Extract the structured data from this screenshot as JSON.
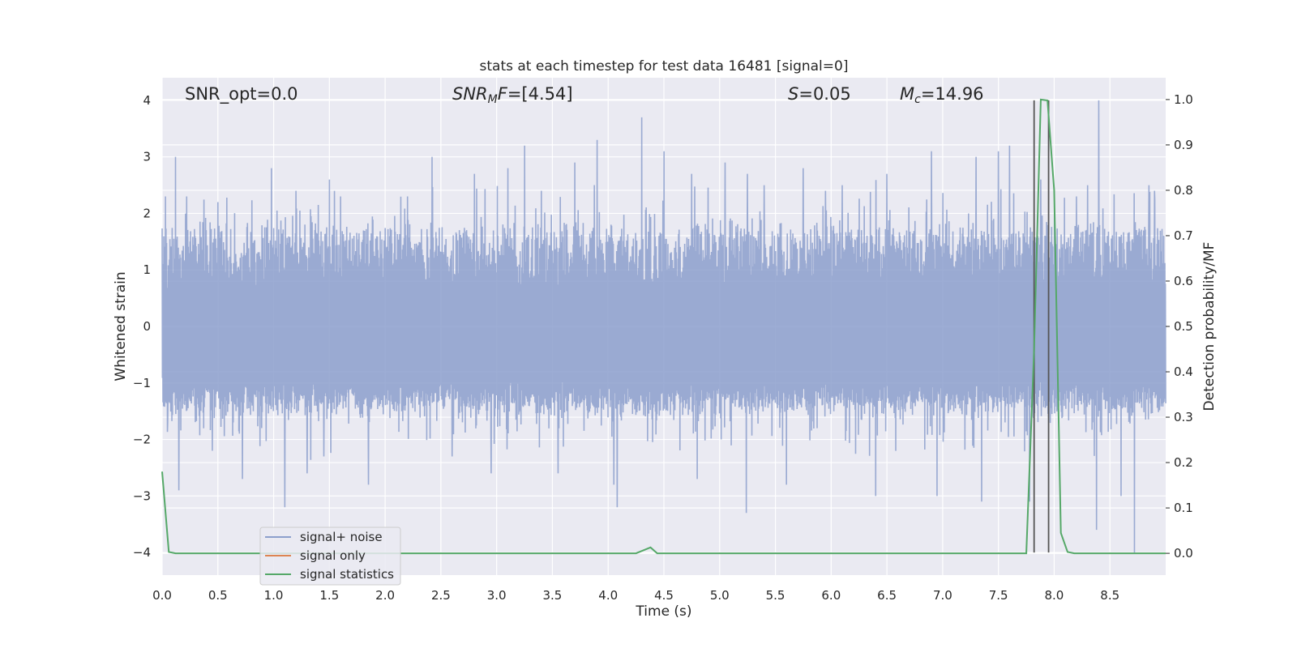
{
  "chart_data": {
    "type": "line",
    "title": "stats at each timestep for test data 16481 [signal=0]",
    "xlabel": "Time (s)",
    "ylabel": "Whitened strain",
    "y2label": "Detection probability/MF",
    "xlim": [
      0.0,
      9.0
    ],
    "ylim": [
      -4.4,
      4.4
    ],
    "y2lim": [
      -0.048,
      1.048
    ],
    "x_ticks": [
      "0.0",
      "0.5",
      "1.0",
      "1.5",
      "2.0",
      "2.5",
      "3.0",
      "3.5",
      "4.0",
      "4.5",
      "5.0",
      "5.5",
      "6.0",
      "6.5",
      "7.0",
      "7.5",
      "8.0",
      "8.5"
    ],
    "y_ticks": [
      "−4",
      "−3",
      "−2",
      "−1",
      "0",
      "1",
      "2",
      "3",
      "4"
    ],
    "y2_ticks": [
      "0.0",
      "0.1",
      "0.2",
      "0.3",
      "0.4",
      "0.5",
      "0.6",
      "0.7",
      "0.8",
      "0.9",
      "1.0"
    ],
    "grid": true,
    "legend_position": "lower-left",
    "annotations": [
      {
        "text": "SNR_opt=0.0",
        "parts": [
          {
            "t": "SNR_opt=0.0",
            "style": "normal"
          }
        ]
      },
      {
        "text": "SNR_MF=[4.54]",
        "parts": [
          {
            "t": "SNR",
            "style": "italic"
          },
          {
            "t": "M",
            "style": "italic-sub"
          },
          {
            "t": "F",
            "style": "italic"
          },
          {
            "t": "=[4.54]",
            "style": "normal"
          }
        ]
      },
      {
        "text": "S=0.05",
        "parts": [
          {
            "t": "S",
            "style": "italic"
          },
          {
            "t": "=0.05",
            "style": "normal"
          }
        ]
      },
      {
        "text": "M_c=14.96",
        "parts": [
          {
            "t": "M",
            "style": "italic"
          },
          {
            "t": "c",
            "style": "italic-sub"
          },
          {
            "t": "=14.96",
            "style": "normal"
          }
        ]
      }
    ],
    "series": [
      {
        "name": "signal+ noise",
        "color": "#8c9fcc",
        "axis": "left",
        "x_start": 0.0,
        "x_end": 9.0,
        "baseline_amplitude": 1.6,
        "peaks": [
          [
            0.03,
            2.3
          ],
          [
            0.12,
            3.0
          ],
          [
            0.22,
            2.3
          ],
          [
            0.05,
            -1.7
          ],
          [
            0.15,
            -2.9
          ],
          [
            0.5,
            2.2
          ],
          [
            0.45,
            -2.2
          ],
          [
            0.72,
            -2.7
          ],
          [
            0.82,
            0.6
          ],
          [
            0.98,
            2.8
          ],
          [
            1.1,
            -3.2
          ],
          [
            1.2,
            2.4
          ],
          [
            1.3,
            -2.6
          ],
          [
            1.5,
            2.6
          ],
          [
            1.45,
            -2.3
          ],
          [
            1.6,
            2.3
          ],
          [
            1.85,
            -2.8
          ],
          [
            2.2,
            2.3
          ],
          [
            2.42,
            3.0
          ],
          [
            2.6,
            -2.3
          ],
          [
            2.8,
            2.7
          ],
          [
            2.95,
            -2.6
          ],
          [
            3.1,
            2.8
          ],
          [
            3.25,
            3.2
          ],
          [
            3.4,
            2.4
          ],
          [
            3.55,
            -2.6
          ],
          [
            3.7,
            2.9
          ],
          [
            3.9,
            3.3
          ],
          [
            4.05,
            -2.8
          ],
          [
            4.08,
            -3.2
          ],
          [
            4.3,
            3.7
          ],
          [
            4.5,
            3.1
          ],
          [
            4.75,
            2.7
          ],
          [
            4.8,
            -2.7
          ],
          [
            5.05,
            2.9
          ],
          [
            5.25,
            2.7
          ],
          [
            5.24,
            -3.3
          ],
          [
            5.4,
            2.5
          ],
          [
            5.6,
            -2.8
          ],
          [
            5.75,
            2.8
          ],
          [
            5.95,
            2.4
          ],
          [
            6.1,
            2.5
          ],
          [
            6.4,
            -3.0
          ],
          [
            6.5,
            2.7
          ],
          [
            6.9,
            3.1
          ],
          [
            6.95,
            -3.0
          ],
          [
            7.3,
            3.0
          ],
          [
            7.35,
            -3.1
          ],
          [
            7.5,
            3.1
          ],
          [
            7.6,
            3.2
          ],
          [
            7.78,
            3.6
          ],
          [
            7.78,
            -3.1
          ],
          [
            7.88,
            2.6
          ],
          [
            8.2,
            2.3
          ],
          [
            8.3,
            2.5
          ],
          [
            8.4,
            4.0
          ],
          [
            8.38,
            -3.6
          ],
          [
            8.6,
            -3.0
          ],
          [
            8.72,
            -4.0
          ],
          [
            8.85,
            2.5
          ],
          [
            8.9,
            2.4
          ]
        ]
      },
      {
        "name": "signal only",
        "color": "#dd8452",
        "axis": "left",
        "x": [],
        "y": []
      },
      {
        "name": "signal statistics",
        "color": "#55a868",
        "axis": "right",
        "x": [
          0.0,
          0.06,
          0.12,
          0.5,
          1.0,
          2.0,
          3.0,
          4.0,
          4.25,
          4.32,
          4.38,
          4.44,
          4.5,
          5.0,
          6.0,
          7.0,
          7.75,
          7.82,
          7.88,
          7.94,
          8.0,
          8.06,
          8.12,
          8.18,
          8.5,
          9.0
        ],
        "y": [
          0.18,
          0.003,
          0.0,
          0.0,
          0.0,
          0.0,
          0.0,
          0.0,
          0.0,
          0.007,
          0.013,
          0.0,
          0.0,
          0.0,
          0.0,
          0.0,
          0.0,
          0.45,
          1.0,
          0.998,
          0.8,
          0.045,
          0.003,
          0.0,
          0.0,
          0.0
        ]
      }
    ],
    "vertical_markers": {
      "color": "#555555",
      "x": [
        7.82,
        7.95
      ],
      "y_top": 4.0,
      "y_bottom": -4.0
    }
  }
}
